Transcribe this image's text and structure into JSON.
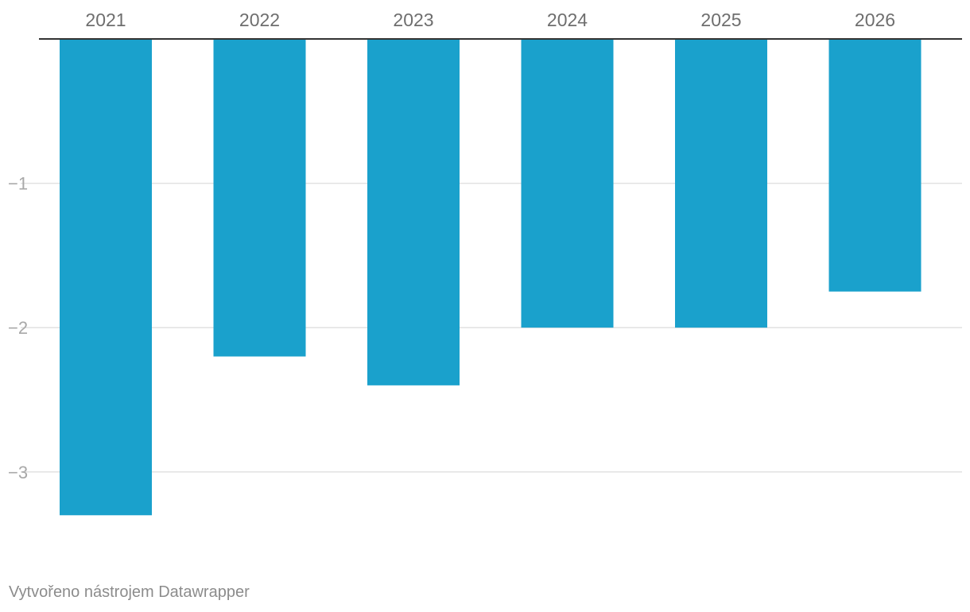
{
  "chart_data": {
    "type": "bar",
    "title": "",
    "xlabel": "",
    "ylabel": "",
    "categories": [
      "2021",
      "2022",
      "2023",
      "2024",
      "2025",
      "2026"
    ],
    "values": [
      -3.3,
      -2.2,
      -2.4,
      -2.0,
      -2.0,
      -1.75
    ],
    "ylim": [
      -3.5,
      0
    ],
    "yticks": [
      -1,
      -2,
      -3
    ],
    "ytick_labels": [
      "−1",
      "−2",
      "−3"
    ],
    "x_axis_position": "top",
    "grid": true,
    "legend": "none",
    "bar_color": "#1aa1cc",
    "gridline_color": "#e2e2e2",
    "baseline_color": "#333333",
    "tick_label_color": "#6e6e6e",
    "ytick_label_color": "#a8a8a8"
  },
  "footer": {
    "credit": "Vytvořeno nástrojem Datawrapper"
  }
}
